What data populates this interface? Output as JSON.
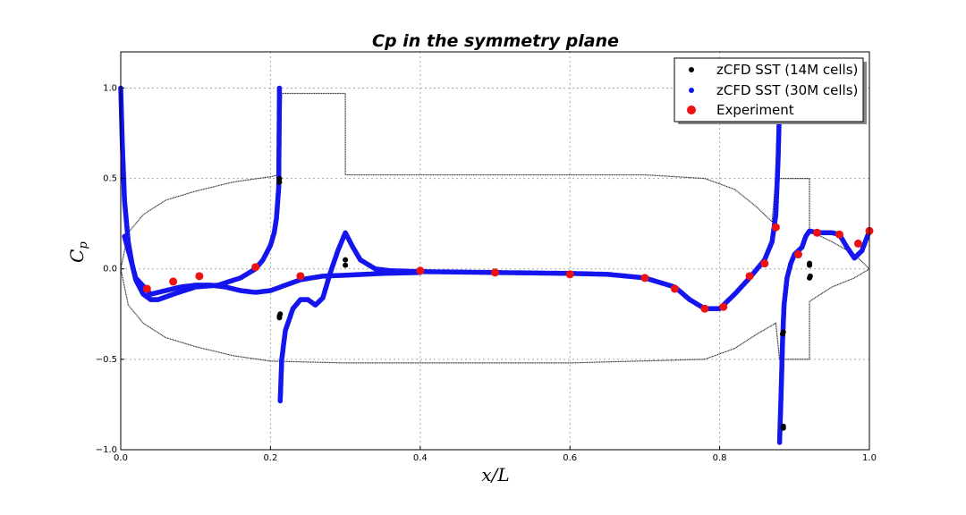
{
  "chart_data": {
    "type": "scatter",
    "title": "Cp in the symmetry plane",
    "xlabel": "x/L",
    "ylabel": "C_p",
    "xlim": [
      0.0,
      1.0
    ],
    "ylim": [
      -1.0,
      1.2
    ],
    "x_ticks": [
      0.0,
      0.2,
      0.4,
      0.6,
      0.8,
      1.0
    ],
    "x_tick_labels": [
      "0.0",
      "0.2",
      "0.4",
      "0.6",
      "0.8",
      "1.0"
    ],
    "y_ticks": [
      -1.0,
      -0.5,
      0.0,
      0.5,
      1.0
    ],
    "y_tick_labels": [
      "−1.0",
      "−0.5",
      "0.0",
      "0.5",
      "1.0"
    ],
    "grid": true,
    "legend_position": "top-right",
    "colors": {
      "zcfd_14m": "#000000",
      "zcfd_30m": "#1515ee",
      "experiment": "#ee1111",
      "outline": "#222222"
    },
    "series": [
      {
        "name": "zCFD SST (14M cells)",
        "color": "#000000",
        "marker": "small-dot",
        "x": [
          0.212,
          0.212,
          0.212,
          0.212,
          0.213,
          0.3,
          0.3,
          0.885,
          0.885,
          0.885,
          0.884,
          0.92,
          0.92,
          0.92,
          0.921
        ],
        "y": [
          0.5,
          0.48,
          -0.26,
          -0.27,
          -0.25,
          0.05,
          0.02,
          -0.87,
          -0.88,
          -0.35,
          -0.36,
          -0.05,
          0.02,
          0.03,
          -0.04
        ]
      },
      {
        "name": "zCFD SST (30M cells)",
        "color": "#1515ee",
        "marker": "dot",
        "upper_branch": {
          "x": [
            0.0,
            0.002,
            0.005,
            0.01,
            0.015,
            0.02,
            0.03,
            0.04,
            0.05,
            0.07,
            0.1,
            0.13,
            0.16,
            0.18,
            0.19,
            0.2,
            0.205,
            0.208,
            0.211,
            0.212
          ],
          "y": [
            1.0,
            0.7,
            0.38,
            0.15,
            0.03,
            -0.06,
            -0.14,
            -0.17,
            -0.17,
            -0.14,
            -0.1,
            -0.09,
            -0.05,
            0.0,
            0.05,
            0.13,
            0.2,
            0.28,
            0.45,
            1.0
          ]
        },
        "lower_branch": {
          "x": [
            0.213,
            0.215,
            0.22,
            0.23,
            0.24,
            0.25,
            0.26,
            0.27,
            0.28,
            0.29,
            0.3,
            0.31,
            0.32,
            0.34,
            0.36,
            0.4,
            0.5,
            0.6,
            0.65,
            0.7,
            0.74,
            0.76,
            0.78,
            0.8,
            0.82,
            0.84,
            0.86,
            0.87,
            0.875,
            0.878,
            0.88
          ],
          "y": [
            -0.73,
            -0.5,
            -0.34,
            -0.22,
            -0.17,
            -0.17,
            -0.2,
            -0.16,
            -0.02,
            0.1,
            0.2,
            0.12,
            0.05,
            0.0,
            -0.01,
            -0.015,
            -0.02,
            -0.025,
            -0.03,
            -0.05,
            -0.1,
            -0.17,
            -0.22,
            -0.22,
            -0.14,
            -0.05,
            0.05,
            0.15,
            0.3,
            0.6,
            0.9
          ]
        },
        "body_branch": {
          "x": [
            0.005,
            0.02,
            0.04,
            0.06,
            0.08,
            0.1,
            0.12,
            0.14,
            0.16,
            0.18,
            0.2,
            0.22,
            0.24,
            0.27,
            0.3,
            0.35,
            0.4
          ],
          "y": [
            0.18,
            -0.05,
            -0.14,
            -0.12,
            -0.1,
            -0.09,
            -0.09,
            -0.1,
            -0.12,
            -0.13,
            -0.12,
            -0.09,
            -0.06,
            -0.04,
            -0.035,
            -0.025,
            -0.02
          ]
        },
        "tail_branch": {
          "x": [
            0.88,
            0.882,
            0.884,
            0.886,
            0.89,
            0.895,
            0.9,
            0.91,
            0.915,
            0.92,
            0.93,
            0.95,
            0.96,
            0.97,
            0.98,
            0.99,
            1.0
          ],
          "y": [
            -0.96,
            -0.7,
            -0.4,
            -0.2,
            -0.05,
            0.03,
            0.08,
            0.12,
            0.18,
            0.21,
            0.2,
            0.2,
            0.19,
            0.12,
            0.06,
            0.1,
            0.21
          ]
        }
      },
      {
        "name": "Experiment",
        "color": "#ee1111",
        "marker": "large-dot",
        "x": [
          0.035,
          0.07,
          0.105,
          0.18,
          0.24,
          0.4,
          0.5,
          0.6,
          0.7,
          0.74,
          0.78,
          0.805,
          0.84,
          0.86,
          0.875,
          0.905,
          0.93,
          0.96,
          0.985,
          1.0
        ],
        "y": [
          -0.11,
          -0.07,
          -0.04,
          0.01,
          -0.04,
          -0.01,
          -0.02,
          -0.03,
          -0.05,
          -0.11,
          -0.22,
          -0.21,
          -0.04,
          0.03,
          0.23,
          0.08,
          0.2,
          0.19,
          0.14,
          0.21
        ]
      }
    ],
    "body_outline": {
      "color": "#222222",
      "note_free": true,
      "upper": {
        "x": [
          0.0,
          0.01,
          0.03,
          0.06,
          0.1,
          0.15,
          0.2,
          0.212,
          0.215,
          0.3,
          0.3,
          0.6,
          0.7,
          0.78,
          0.82,
          0.85,
          0.87,
          0.875,
          0.92,
          0.92,
          0.95,
          0.98,
          1.0
        ],
        "y": [
          0.0,
          0.2,
          0.3,
          0.38,
          0.43,
          0.48,
          0.51,
          0.52,
          0.97,
          0.97,
          0.52,
          0.52,
          0.52,
          0.5,
          0.44,
          0.34,
          0.26,
          0.5,
          0.5,
          0.21,
          0.15,
          0.08,
          0.0
        ]
      },
      "lower": {
        "x": [
          0.0,
          0.01,
          0.03,
          0.06,
          0.1,
          0.15,
          0.2,
          0.3,
          0.6,
          0.78,
          0.82,
          0.85,
          0.875,
          0.88,
          0.92,
          0.92,
          0.95,
          0.98,
          1.0
        ],
        "y": [
          0.0,
          -0.2,
          -0.3,
          -0.38,
          -0.43,
          -0.48,
          -0.51,
          -0.52,
          -0.52,
          -0.5,
          -0.44,
          -0.36,
          -0.3,
          -0.5,
          -0.5,
          -0.18,
          -0.1,
          -0.05,
          0.0
        ]
      }
    }
  }
}
